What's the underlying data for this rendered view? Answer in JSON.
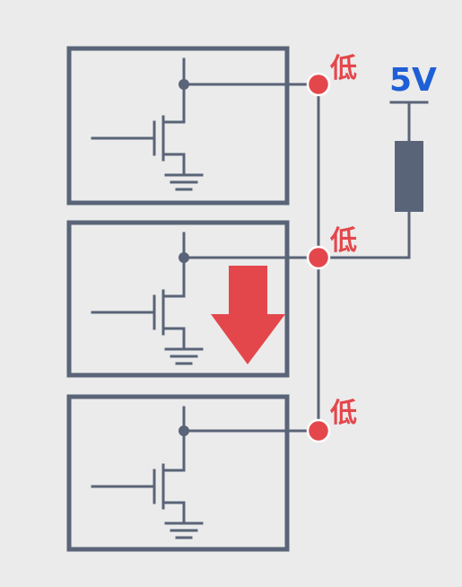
{
  "supply": {
    "label": "5V"
  },
  "nodes": [
    {
      "label": "低"
    },
    {
      "label": "低"
    },
    {
      "label": "低"
    }
  ],
  "colors": {
    "background": "#ebebeb",
    "wire": "#5a6478",
    "node": "#e4474b",
    "label_low": "#e4474b",
    "label_voltage": "#1f5fd6",
    "resistor": "#5a6478",
    "arrow": "#e4474b"
  },
  "icons": {
    "current_direction": "down-arrow-icon"
  }
}
